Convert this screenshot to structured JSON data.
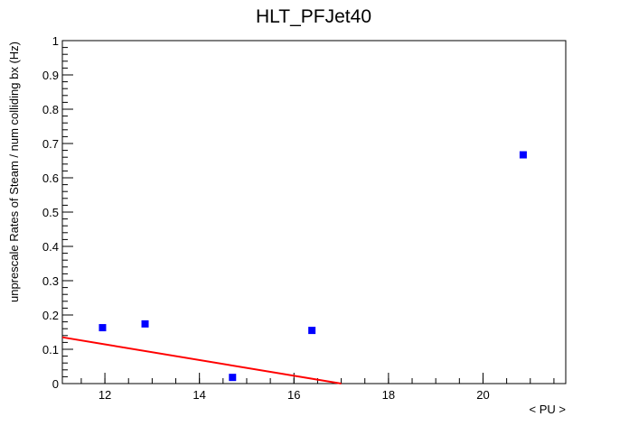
{
  "chart_data": {
    "type": "scatter",
    "title": "HLT_PFJet40",
    "xlabel": "< PU >",
    "ylabel": "unprescale Rates of Steam / num colliding bx (Hz)",
    "xlim": [
      11.1,
      21.75
    ],
    "ylim": [
      0,
      1
    ],
    "xticks": [
      12,
      14,
      16,
      18,
      20
    ],
    "yticks": [
      0,
      0.1,
      0.2,
      0.3,
      0.4,
      0.5,
      0.6,
      0.7,
      0.8,
      0.9,
      1
    ],
    "xtick_labels": [
      "12",
      "14",
      "16",
      "18",
      "20"
    ],
    "ytick_labels": [
      "0",
      "0.1",
      "0.2",
      "0.3",
      "0.4",
      "0.5",
      "0.6",
      "0.7",
      "0.8",
      "0.9",
      "1"
    ],
    "grid": false,
    "series": [
      {
        "type": "scatter",
        "color": "#0000ff",
        "marker": "square",
        "x": [
          11.95,
          12.85,
          14.7,
          16.38,
          20.85
        ],
        "y": [
          0.163,
          0.174,
          0.018,
          0.155,
          0.667
        ]
      },
      {
        "type": "line",
        "color": "#ff0000",
        "x": [
          11.1,
          17.0
        ],
        "y": [
          0.135,
          0.0
        ]
      }
    ]
  }
}
